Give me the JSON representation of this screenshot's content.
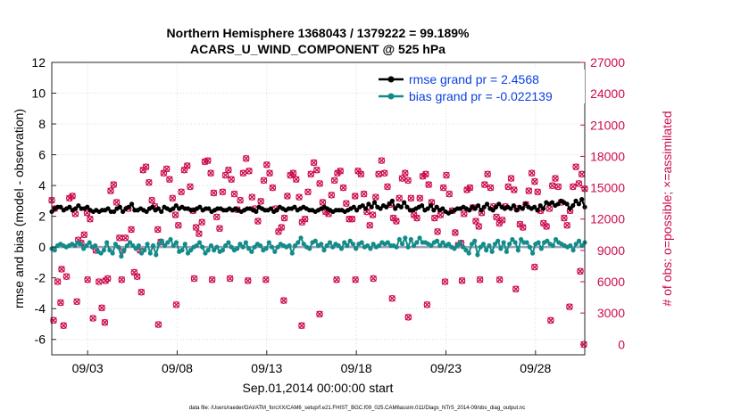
{
  "chart_data": {
    "type": "line",
    "title": [
      "Northern Hemisphere 1368043 / 1379222 = 99.189%",
      "ACARS_U_WIND_COMPONENT @ 525 hPa"
    ],
    "xlabel": "Sep.01,2014 00:00:00 start",
    "ylabel": "rmse and bias (model - observation)",
    "ylabel_right": "# of obs: o=possible; ×=assimilated",
    "x_range_days": [
      1.0,
      30.75
    ],
    "ylim": [
      -7,
      12
    ],
    "yticks": [
      "-6",
      "-4",
      "-2",
      "0",
      "2",
      "4",
      "6",
      "8",
      "10",
      "12"
    ],
    "ylim_right": [
      -1000,
      27000
    ],
    "yticks_right": [
      "0",
      "3000",
      "6000",
      "9000",
      "12000",
      "15000",
      "18000",
      "21000",
      "24000",
      "27000"
    ],
    "xticks": [
      {
        "label": "09/03",
        "day": 3
      },
      {
        "label": "09/08",
        "day": 8
      },
      {
        "label": "09/13",
        "day": 13
      },
      {
        "label": "09/18",
        "day": 18
      },
      {
        "label": "09/23",
        "day": 23
      },
      {
        "label": "09/28",
        "day": 28
      }
    ],
    "footnote": "data file: /Users/raeder/DAI/ATM_forcXX/CAM6_setup/f.e21.FHIST_BGC.f09_025.CAM6assim.011/Diags_NTrS_2014-09/obs_diag_output.nc",
    "series": [
      {
        "name": "rmse grand pr = 2.4568",
        "color": "#000000"
      },
      {
        "name": "bias grand pr = -0.022139",
        "color": "#138b89"
      }
    ],
    "rmse": [
      2.3,
      2.5,
      2.6,
      2.6,
      2.4,
      2.5,
      2.6,
      2.4,
      2.5,
      2.7,
      2.5,
      2.5,
      2.6,
      2.4,
      2.3,
      2.4,
      2.3,
      2.4,
      2.4,
      2.5,
      2.3,
      2.3,
      2.5,
      2.6,
      2.3,
      2.5,
      2.6,
      2.8,
      2.4,
      2.4,
      2.5,
      2.4,
      2.3,
      2.5,
      2.6,
      2.4,
      2.5,
      2.3,
      2.6,
      2.5,
      2.4,
      2.5,
      2.7,
      2.5,
      2.6,
      2.5,
      2.5,
      2.4,
      2.4,
      2.5,
      2.6,
      2.4,
      2.5,
      2.5,
      2.3,
      2.4,
      2.5,
      2.5,
      2.4,
      2.4,
      2.5,
      2.4,
      2.5,
      2.4,
      2.3,
      2.4,
      2.5,
      2.5,
      2.4,
      2.3,
      2.6,
      2.5,
      2.4,
      2.4,
      2.5,
      2.3,
      2.4,
      2.6,
      2.5,
      2.4,
      2.5,
      2.5,
      2.6,
      2.4,
      2.5,
      2.6,
      2.5,
      2.4,
      2.4,
      2.3,
      2.4,
      2.5,
      2.6,
      2.5,
      2.4,
      2.3,
      2.4,
      2.4,
      2.4,
      2.3,
      2.4,
      2.5,
      2.6,
      2.4,
      2.6,
      2.7,
      2.5,
      2.8,
      2.6,
      2.9,
      2.6,
      2.5,
      2.7,
      2.6,
      2.8,
      3.0,
      2.5,
      2.7,
      2.6,
      2.9,
      2.6,
      2.4,
      2.4,
      2.5,
      2.6,
      2.7,
      2.4,
      2.5,
      2.7,
      2.4,
      2.6,
      2.4,
      2.5,
      2.3,
      2.2,
      2.3,
      2.4,
      2.5,
      2.5,
      2.6,
      2.5,
      2.4,
      2.6,
      2.5,
      2.7,
      2.4,
      2.6,
      2.8,
      2.5,
      2.4,
      2.6,
      2.8,
      2.6,
      2.5,
      2.6,
      2.5,
      2.7,
      2.4,
      2.6,
      2.5,
      2.8,
      2.6,
      2.5,
      2.6,
      2.4,
      2.7,
      2.5,
      2.9,
      2.8,
      2.9,
      2.7,
      2.8,
      3.0,
      2.9,
      2.8,
      2.5,
      2.7,
      3.0,
      2.8,
      3.1,
      2.6
    ],
    "bias": [
      -0.1,
      -0.2,
      0.1,
      0.2,
      0.1,
      0.0,
      0.1,
      0.2,
      0.1,
      0.3,
      0.2,
      -0.1,
      0.1,
      0.3,
      0.0,
      0.1,
      -0.3,
      -0.4,
      -0.2,
      0.3,
      -0.2,
      -0.4,
      0.2,
      0.0,
      -0.6,
      -0.2,
      0.1,
      0.3,
      0.1,
      -0.1,
      0.1,
      -0.4,
      -0.2,
      0.2,
      -0.4,
      0.1,
      -0.5,
      0.2,
      0.4,
      0.1,
      0.3,
      0.5,
      0.1,
      0.3,
      -0.3,
      -0.2,
      0.2,
      -0.4,
      -0.2,
      0.0,
      0.1,
      0.3,
      0.0,
      -0.4,
      -0.2,
      0.1,
      -0.2,
      0.0,
      -0.3,
      -0.2,
      0.1,
      0.3,
      0.0,
      -0.2,
      -0.1,
      0.2,
      0.0,
      0.3,
      -0.1,
      -0.3,
      0.0,
      0.2,
      0.1,
      -0.2,
      -0.1,
      0.3,
      0.0,
      -0.3,
      0.0,
      0.2,
      0.1,
      0.0,
      0.1,
      -0.4,
      0.1,
      0.3,
      0.6,
      0.2,
      0.0,
      -0.1,
      0.3,
      0.4,
      0.1,
      0.2,
      -0.2,
      0.1,
      0.3,
      0.0,
      0.2,
      0.1,
      -0.1,
      0.3,
      0.1,
      0.4,
      0.2,
      -0.1,
      0.2,
      0.3,
      0.0,
      0.1,
      -0.1,
      0.2,
      0.0,
      0.1,
      0.3,
      0.2,
      0.3,
      0.1,
      0.1,
      0.0,
      0.5,
      0.2,
      0.6,
      0.0,
      0.5,
      0.1,
      0.3,
      0.6,
      0.3,
      0.3,
      0.2,
      0.1,
      0.3,
      0.4,
      0.1,
      0.3,
      0.1,
      0.2,
      0.0,
      -0.1,
      0.1,
      0.3,
      0.0,
      -0.2,
      -0.4,
      0.2,
      0.4,
      -0.5,
      0.0,
      0.2,
      -0.2,
      0.1,
      -0.3,
      0.2,
      0.4,
      -0.1,
      0.3,
      -0.3,
      0.2,
      0.5,
      0.3,
      -0.2,
      0.5,
      0.3,
      0.3,
      0.0,
      -0.4,
      0.2,
      0.3,
      -0.1,
      0.3,
      0.4,
      0.2,
      0.1,
      0.5,
      0.3,
      0.2,
      0.1,
      0.0,
      0.1,
      -0.2,
      0.2,
      0.4,
      0.1,
      0.3
    ],
    "obs_count": [
      13800,
      13000,
      6000,
      4000,
      1800,
      6500,
      14000,
      14200,
      12500,
      10000,
      9700,
      10500,
      12600,
      12000,
      2500,
      9000,
      6000,
      3500,
      2100,
      6300,
      14700,
      15300,
      13600,
      10200,
      9000,
      10200,
      13000,
      11000,
      6900,
      6500,
      9000,
      16700,
      17000,
      15500,
      13800,
      13200,
      11000,
      9800,
      16400,
      16800,
      15800,
      14000,
      12400,
      11400,
      14600,
      16700,
      17100,
      15100,
      12800,
      11200,
      10600,
      11700,
      17500,
      17600,
      16400,
      14500,
      12200,
      11100,
      14600,
      16200,
      16700,
      15800,
      14400,
      12900,
      13800,
      16400,
      17800,
      16600,
      14100,
      13000,
      11800,
      13700,
      15700,
      17200,
      16400,
      15000,
      13000,
      10800,
      11200,
      12100,
      14200,
      16200,
      16400,
      15800,
      14100,
      11700,
      12000,
      14600,
      16300,
      17400,
      16700,
      15400,
      13600,
      12700,
      12500,
      14300,
      15700,
      16400,
      16600,
      15000,
      13500,
      12000,
      12000,
      14200,
      16600,
      16300,
      14400,
      12700,
      11400,
      12400,
      14100,
      16300,
      17600,
      16400,
      15100,
      13400,
      12100,
      11800,
      14000,
      15900,
      16400,
      15700,
      14000,
      12400,
      12100,
      14000,
      16100,
      16300,
      15300,
      13600,
      12100,
      10800,
      12400,
      15000,
      16200,
      14400,
      12800,
      10700,
      9500,
      9700,
      12500,
      14800,
      15000,
      13100,
      11800,
      11300,
      12600,
      15300,
      16300,
      15000,
      13200,
      12200,
      11600,
      11900,
      13200,
      15100,
      15900,
      14800,
      13000,
      11500,
      11200,
      13400,
      14700,
      16400,
      15600,
      14600,
      12800,
      11600,
      11300,
      13000,
      15200,
      15900,
      15100,
      13600,
      12100,
      11400,
      12800,
      15100,
      17000,
      15400,
      16300,
      14900
    ],
    "obs_low": [
      {
        "d": 1.1,
        "v": 2300
      },
      {
        "d": 1.55,
        "v": 7200
      },
      {
        "d": 2.4,
        "v": 4100
      },
      {
        "d": 3.0,
        "v": 6200
      },
      {
        "d": 4.0,
        "v": 6100
      },
      {
        "d": 4.9,
        "v": 6200
      },
      {
        "d": 6.0,
        "v": 5000
      },
      {
        "d": 6.95,
        "v": 1900
      },
      {
        "d": 7.95,
        "v": 3800
      },
      {
        "d": 8.95,
        "v": 6300
      },
      {
        "d": 9.95,
        "v": 6200
      },
      {
        "d": 10.95,
        "v": 6300
      },
      {
        "d": 11.95,
        "v": 6100
      },
      {
        "d": 12.95,
        "v": 6200
      },
      {
        "d": 13.95,
        "v": 4200
      },
      {
        "d": 14.95,
        "v": 1800
      },
      {
        "d": 15.95,
        "v": 2900
      },
      {
        "d": 16.9,
        "v": 6200
      },
      {
        "d": 17.95,
        "v": 6200
      },
      {
        "d": 18.95,
        "v": 6300
      },
      {
        "d": 20.0,
        "v": 4400
      },
      {
        "d": 20.9,
        "v": 2600
      },
      {
        "d": 21.95,
        "v": 3800
      },
      {
        "d": 22.95,
        "v": 6000
      },
      {
        "d": 23.9,
        "v": 6100
      },
      {
        "d": 24.9,
        "v": 6200
      },
      {
        "d": 26.0,
        "v": 6200
      },
      {
        "d": 26.9,
        "v": 5300
      },
      {
        "d": 27.95,
        "v": 7400
      },
      {
        "d": 28.85,
        "v": 2300
      },
      {
        "d": 29.9,
        "v": 3600
      },
      {
        "d": 30.5,
        "v": 7000
      },
      {
        "d": 30.7,
        "v": 0
      }
    ]
  }
}
